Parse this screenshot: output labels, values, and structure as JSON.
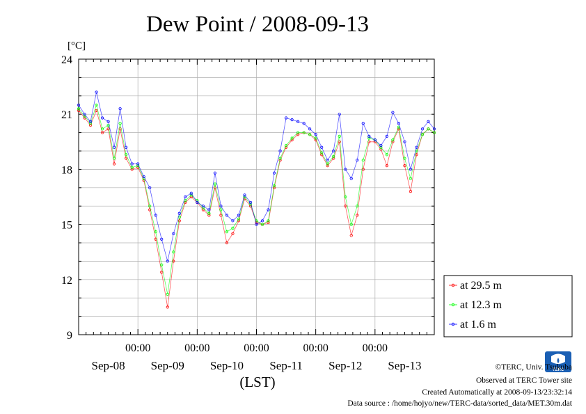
{
  "chart_data": {
    "type": "line",
    "title": "Dew Point / 2008-09-13",
    "ylabel": "[°C]",
    "xlabel": "(LST)",
    "ylim": [
      9,
      24
    ],
    "yticks": [
      "9",
      "12",
      "15",
      "18",
      "21",
      "24"
    ],
    "xrange_days": [
      -0.5,
      5.5
    ],
    "time_ticks": [
      {
        "day": 0.5,
        "label": "00:00"
      },
      {
        "day": 1.5,
        "label": "00:00"
      },
      {
        "day": 2.5,
        "label": "00:00"
      },
      {
        "day": 3.5,
        "label": "00:00"
      },
      {
        "day": 4.5,
        "label": "00:00"
      }
    ],
    "date_labels": [
      {
        "day": 0,
        "label": "Sep-08"
      },
      {
        "day": 1,
        "label": "Sep-09"
      },
      {
        "day": 2,
        "label": "Sep-10"
      },
      {
        "day": 3,
        "label": "Sep-11"
      },
      {
        "day": 4,
        "label": "Sep-12"
      },
      {
        "day": 5,
        "label": "Sep-13"
      }
    ],
    "grid": true,
    "legend_position": "right-bottom",
    "series": [
      {
        "name": "at 29.5 m",
        "color": "#ff0000",
        "x": [
          -0.5,
          -0.4,
          -0.3,
          -0.2,
          -0.1,
          0.0,
          0.1,
          0.2,
          0.3,
          0.4,
          0.5,
          0.6,
          0.7,
          0.8,
          0.9,
          1.0,
          1.1,
          1.2,
          1.3,
          1.4,
          1.5,
          1.6,
          1.7,
          1.8,
          1.9,
          2.0,
          2.1,
          2.2,
          2.3,
          2.4,
          2.5,
          2.6,
          2.7,
          2.8,
          2.9,
          3.0,
          3.1,
          3.2,
          3.3,
          3.4,
          3.5,
          3.6,
          3.7,
          3.8,
          3.9,
          4.0,
          4.1,
          4.2,
          4.3,
          4.4,
          4.5,
          4.6,
          4.7,
          4.8,
          4.9,
          5.0,
          5.1,
          5.2,
          5.3,
          5.4,
          5.5
        ],
        "values": [
          21.2,
          20.8,
          20.4,
          21.2,
          20.0,
          20.2,
          18.3,
          20.2,
          18.6,
          18.0,
          18.1,
          17.4,
          15.8,
          14.2,
          12.4,
          10.5,
          13.0,
          15.2,
          16.2,
          16.5,
          16.2,
          15.8,
          15.5,
          17.0,
          15.5,
          14.0,
          14.5,
          15.2,
          16.4,
          16.0,
          15.1,
          15.0,
          15.1,
          17.0,
          18.5,
          19.2,
          19.6,
          19.9,
          20.0,
          19.9,
          19.6,
          18.8,
          18.2,
          18.6,
          19.5,
          16.0,
          14.4,
          15.5,
          18.0,
          19.5,
          19.5,
          19.1,
          18.2,
          19.5,
          20.2,
          18.2,
          16.8,
          18.8,
          19.9,
          20.2,
          20.0
        ]
      },
      {
        "name": "at 12.3 m",
        "color": "#00ff00",
        "x": [
          -0.5,
          -0.4,
          -0.3,
          -0.2,
          -0.1,
          0.0,
          0.1,
          0.2,
          0.3,
          0.4,
          0.5,
          0.6,
          0.7,
          0.8,
          0.9,
          1.0,
          1.1,
          1.2,
          1.3,
          1.4,
          1.5,
          1.6,
          1.7,
          1.8,
          1.9,
          2.0,
          2.1,
          2.2,
          2.3,
          2.4,
          2.5,
          2.6,
          2.7,
          2.8,
          2.9,
          3.0,
          3.1,
          3.2,
          3.3,
          3.4,
          3.5,
          3.6,
          3.7,
          3.8,
          3.9,
          4.0,
          4.1,
          4.2,
          4.3,
          4.4,
          4.5,
          4.6,
          4.7,
          4.8,
          4.9,
          5.0,
          5.1,
          5.2,
          5.3,
          5.4,
          5.5
        ],
        "values": [
          21.3,
          20.9,
          20.5,
          21.5,
          20.2,
          20.4,
          18.6,
          20.5,
          18.8,
          18.1,
          18.2,
          17.5,
          16.0,
          14.6,
          12.8,
          11.2,
          13.5,
          15.4,
          16.3,
          16.6,
          16.3,
          15.9,
          15.6,
          17.2,
          15.8,
          14.6,
          14.8,
          15.3,
          16.5,
          16.1,
          15.2,
          15.0,
          15.2,
          17.1,
          18.6,
          19.3,
          19.7,
          20.0,
          20.0,
          19.9,
          19.7,
          18.9,
          18.3,
          18.7,
          19.8,
          16.5,
          15.0,
          16.0,
          18.5,
          19.7,
          19.6,
          19.2,
          18.8,
          19.6,
          20.3,
          18.6,
          17.5,
          19.0,
          19.9,
          20.2,
          20.0
        ]
      },
      {
        "name": "at 1.6 m",
        "color": "#0000ff",
        "x": [
          -0.5,
          -0.4,
          -0.3,
          -0.2,
          -0.1,
          0.0,
          0.1,
          0.2,
          0.3,
          0.4,
          0.5,
          0.6,
          0.7,
          0.8,
          0.9,
          1.0,
          1.1,
          1.2,
          1.3,
          1.4,
          1.5,
          1.6,
          1.7,
          1.8,
          1.9,
          2.0,
          2.1,
          2.2,
          2.3,
          2.4,
          2.5,
          2.6,
          2.7,
          2.8,
          2.9,
          3.0,
          3.1,
          3.2,
          3.3,
          3.4,
          3.5,
          3.6,
          3.7,
          3.8,
          3.9,
          4.0,
          4.1,
          4.2,
          4.3,
          4.4,
          4.5,
          4.6,
          4.7,
          4.8,
          4.9,
          5.0,
          5.1,
          5.2,
          5.3,
          5.4,
          5.5
        ],
        "values": [
          21.5,
          21.0,
          20.6,
          22.2,
          20.8,
          20.6,
          19.2,
          21.3,
          19.2,
          18.3,
          18.3,
          17.6,
          17.0,
          15.5,
          14.2,
          13.0,
          14.5,
          15.6,
          16.5,
          16.7,
          16.2,
          16.0,
          15.8,
          17.8,
          16.0,
          15.5,
          15.2,
          15.5,
          16.6,
          16.2,
          15.0,
          15.2,
          15.8,
          17.8,
          19.0,
          20.8,
          20.7,
          20.6,
          20.5,
          20.2,
          19.9,
          19.2,
          18.5,
          19.0,
          21.0,
          18.0,
          17.5,
          18.5,
          20.5,
          19.8,
          19.6,
          19.3,
          19.8,
          21.1,
          20.5,
          19.5,
          18.0,
          19.2,
          20.2,
          20.6,
          20.2
        ]
      }
    ]
  },
  "credits": {
    "copyright": "©TERC, Univ. Tsukuba",
    "observed": "Observed at TERC Tower site",
    "created": "Created Automatically at 2008-09-13/23:32:14",
    "source": "Data source : /home/hojyo/new/TERC-data/sorted_data/MET.30m.dat",
    "logo_text": "TERC"
  }
}
